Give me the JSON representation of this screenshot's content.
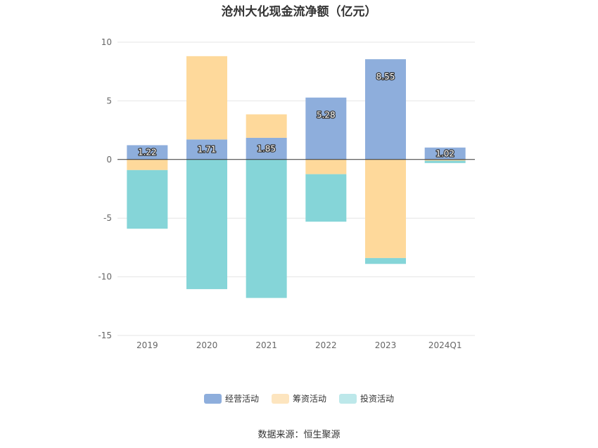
{
  "chart_data": {
    "type": "bar",
    "stacked": true,
    "title": "沧州大化现金流净额（亿元）",
    "categories": [
      "2019",
      "2020",
      "2021",
      "2022",
      "2023",
      "2024Q1"
    ],
    "series": [
      {
        "name": "经营活动",
        "color": "#8eaedc",
        "values": [
          1.22,
          1.71,
          1.85,
          5.28,
          8.55,
          1.02
        ],
        "labels": [
          "1.22",
          "1.71",
          "1.85",
          "5.28",
          "8.55",
          "1.02"
        ]
      },
      {
        "name": "筹资活动",
        "color": "#fed99b",
        "values": [
          -0.9,
          7.1,
          2.0,
          -1.25,
          -8.4,
          -0.1
        ]
      },
      {
        "name": "投资活动",
        "color": "#85d5d8",
        "values": [
          -5.0,
          -11.05,
          -11.8,
          -4.05,
          -0.5,
          -0.2
        ]
      }
    ],
    "ylim": [
      -15,
      10
    ],
    "yticks": [
      10,
      5,
      0,
      -5,
      -10,
      -15
    ],
    "grid": true,
    "legend": "bottom",
    "source": "数据来源：恒生聚源"
  }
}
